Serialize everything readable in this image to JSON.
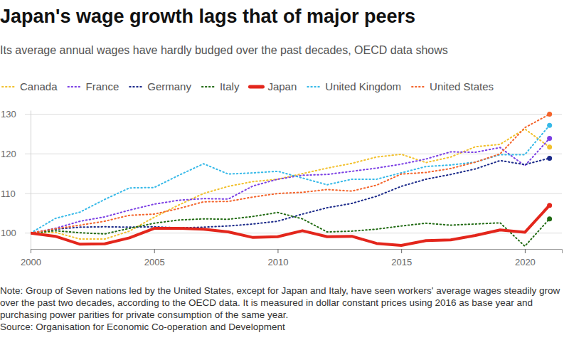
{
  "chart_data": {
    "type": "line",
    "title": "Japan's wage growth lags that of major peers",
    "subtitle": "Its average annual wages have hardly budged over the past decades, OECD data shows",
    "note": "Note: Group of Seven nations led by the United States, except for Japan and Italy, have seen workers' average wages steadily grow over the past two decades, according to the OECD data. It is measured in dollar constant prices using 2016 as base year and purchasing power parities for private consumption of the same year.",
    "source": "Source: Organisation for Economic Co-operation and Development",
    "x": [
      2000,
      2001,
      2002,
      2003,
      2004,
      2005,
      2006,
      2007,
      2008,
      2009,
      2010,
      2011,
      2012,
      2013,
      2014,
      2015,
      2016,
      2017,
      2018,
      2019,
      2020,
      2021
    ],
    "xlim": [
      2000,
      2021.5
    ],
    "xticks": [
      2000,
      2005,
      2010,
      2015,
      2020
    ],
    "ylim": [
      96,
      131
    ],
    "yticks": [
      100,
      110,
      120,
      130
    ],
    "grid": true,
    "legend": "top",
    "marker": "end",
    "series": [
      {
        "name": "Canada",
        "color": "#f2c12e",
        "line_style": "dotted",
        "values": [
          100,
          100.2,
          98.5,
          98.5,
          100.5,
          104.0,
          107.1,
          110.0,
          111.8,
          113.0,
          113.6,
          115.0,
          116.4,
          117.6,
          119.2,
          119.9,
          117.8,
          119.2,
          121.8,
          122.4,
          126.3,
          121.7
        ]
      },
      {
        "name": "France",
        "color": "#7b3fe4",
        "line_style": "dotted",
        "values": [
          100,
          101.2,
          103.0,
          104.1,
          105.8,
          107.3,
          108.3,
          108.7,
          108.6,
          111.9,
          113.6,
          114.6,
          114.8,
          115.6,
          116.4,
          117.4,
          118.7,
          120.5,
          120.4,
          121.6,
          117.0,
          123.9
        ]
      },
      {
        "name": "Germany",
        "color": "#1b2a8a",
        "line_style": "dotted",
        "values": [
          100,
          101.0,
          101.5,
          101.6,
          101.5,
          101.6,
          101.3,
          101.5,
          101.8,
          102.3,
          103.0,
          104.8,
          106.4,
          107.5,
          109.3,
          111.8,
          113.6,
          114.8,
          116.2,
          118.3,
          117.3,
          118.9
        ]
      },
      {
        "name": "Italy",
        "color": "#226b14",
        "line_style": "dotted",
        "values": [
          100,
          100.6,
          100.1,
          99.8,
          101.2,
          102.5,
          103.3,
          103.6,
          103.5,
          104.2,
          105.2,
          103.6,
          100.3,
          100.5,
          101.0,
          101.8,
          102.5,
          102.0,
          102.3,
          102.6,
          96.7,
          103.6
        ]
      },
      {
        "name": "Japan",
        "color": "#e3261c",
        "line_style": "solid",
        "values": [
          100,
          99.2,
          97.2,
          97.3,
          98.8,
          101.2,
          101.2,
          101.0,
          100.3,
          98.9,
          99.1,
          100.6,
          99.1,
          99.2,
          97.4,
          96.9,
          98.1,
          98.3,
          99.4,
          100.8,
          100.2,
          107.0
        ]
      },
      {
        "name": "United Kingdom",
        "color": "#36b9e8",
        "line_style": "dotted",
        "values": [
          100,
          103.7,
          105.3,
          108.5,
          111.4,
          111.5,
          114.6,
          117.5,
          114.9,
          115.2,
          115.6,
          113.9,
          112.2,
          113.6,
          113.6,
          115.2,
          116.8,
          117.2,
          117.9,
          119.8,
          119.8,
          127.2
        ]
      },
      {
        "name": "United States",
        "color": "#f4642b",
        "line_style": "dotted",
        "values": [
          100,
          101.1,
          102.0,
          103.0,
          104.5,
          104.8,
          106.2,
          107.9,
          108.0,
          109.1,
          110.0,
          110.3,
          111.0,
          110.6,
          112.1,
          114.9,
          115.3,
          116.3,
          117.9,
          120.0,
          126.6,
          130.0
        ]
      }
    ]
  }
}
